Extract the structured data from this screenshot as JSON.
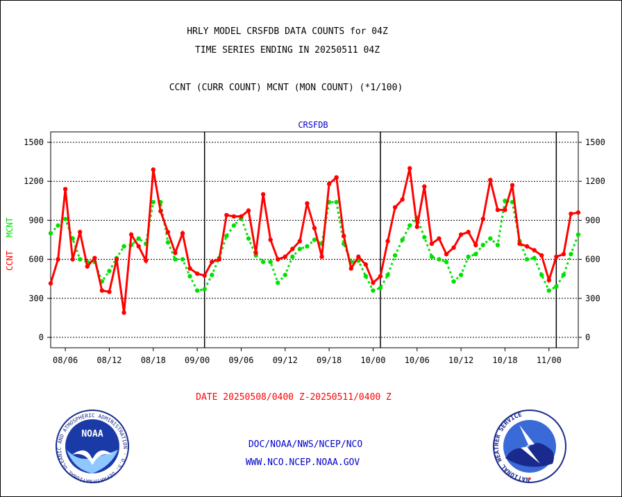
{
  "header": {
    "line1": "HRLY MODEL CRSFDB DATA COUNTS for 04Z",
    "line2": "TIME SERIES ENDING IN 20250511 04Z",
    "line3": "CCNT (CURR COUNT) MCNT (MON COUNT) (*1/100)"
  },
  "footer": {
    "date_range": "DATE 20250508/0400 Z-20250511/0400 Z",
    "org_line": "DOC/NOAA/NWS/NCEP/NCO",
    "url_line": "WWW.NCO.NCEP.NOAA.GOV"
  },
  "logos": {
    "noaa_text": "NOAA",
    "noaa_ring_text": "NATIONAL OCEANIC AND ATMOSPHERIC ADMINISTRATION · U.S. DEPARTMENT OF COMMERCE ·",
    "nws_ring_text": "NATIONAL WEATHER SERVICE"
  },
  "colors": {
    "ccnt": "#ff0000",
    "mcnt": "#00e000",
    "title": "#0000cc",
    "footer_red": "#ff0000",
    "footer_blue": "#0000cc"
  },
  "chart_data": {
    "type": "line",
    "title": "CRSFDB",
    "ylabel_left_ccnt": "CCNT",
    "ylabel_left_mcnt": "MCNT",
    "ylim": [
      -80,
      1580
    ],
    "yticks": [
      0,
      300,
      600,
      900,
      1200,
      1500
    ],
    "vertical_lines_at_index": [
      21,
      45,
      69
    ],
    "x_tick_labels": [
      {
        "label": "08/06",
        "index": 2
      },
      {
        "label": "08/12",
        "index": 8
      },
      {
        "label": "08/18",
        "index": 14
      },
      {
        "label": "09/00",
        "index": 20
      },
      {
        "label": "09/06",
        "index": 26
      },
      {
        "label": "09/12",
        "index": 32
      },
      {
        "label": "09/18",
        "index": 38
      },
      {
        "label": "10/00",
        "index": 44
      },
      {
        "label": "10/06",
        "index": 50
      },
      {
        "label": "10/12",
        "index": 56
      },
      {
        "label": "10/18",
        "index": 62
      },
      {
        "label": "11/00",
        "index": 68
      }
    ],
    "n_points": 73,
    "series": [
      {
        "name": "CCNT",
        "values": [
          415,
          600,
          1140,
          600,
          810,
          545,
          610,
          360,
          350,
          600,
          190,
          790,
          700,
          590,
          1290,
          970,
          810,
          650,
          800,
          530,
          490,
          475,
          580,
          600,
          940,
          930,
          930,
          975,
          650,
          1100,
          750,
          600,
          620,
          680,
          740,
          1030,
          840,
          620,
          1180,
          1230,
          780,
          530,
          620,
          560,
          420,
          470,
          740,
          1000,
          1060,
          1300,
          850,
          1160,
          720,
          760,
          640,
          690,
          790,
          810,
          710,
          910,
          1210,
          980,
          980,
          1170,
          720,
          700,
          670,
          630,
          440,
          620,
          640,
          950,
          960
        ]
      },
      {
        "name": "MCNT",
        "values": [
          800,
          860,
          910,
          760,
          600,
          580,
          580,
          430,
          510,
          610,
          700,
          710,
          760,
          720,
          1040,
          1040,
          730,
          600,
          600,
          470,
          360,
          370,
          480,
          610,
          780,
          860,
          920,
          760,
          630,
          580,
          580,
          420,
          480,
          620,
          680,
          700,
          750,
          720,
          1040,
          1040,
          720,
          580,
          590,
          470,
          360,
          380,
          480,
          630,
          750,
          860,
          920,
          770,
          620,
          600,
          580,
          430,
          480,
          620,
          640,
          710,
          760,
          710,
          1050,
          1040,
          740,
          600,
          610,
          480,
          360,
          390,
          480,
          640,
          790
        ]
      }
    ]
  }
}
